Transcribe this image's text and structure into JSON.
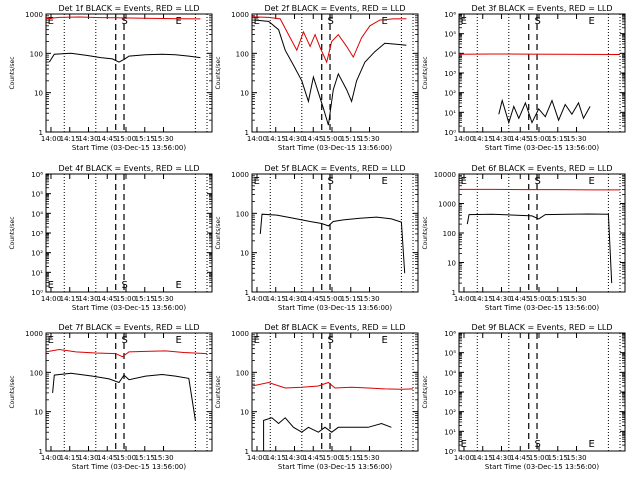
{
  "colors": {
    "events": "#000000",
    "lld": "#dd0000",
    "axes": "#000000"
  },
  "chart_data": [
    {
      "type": "line",
      "title": "Det 1f BLACK = Events, RED = LLD",
      "ylabel": "Counts/sec",
      "xlabel": "Start Time (03-Dec-15 13:56:00)",
      "yscale": "log",
      "ylim": [
        1,
        1000
      ],
      "ytick_labels": [
        "1",
        "10",
        "100",
        "1000"
      ],
      "xtick_labels": [
        "14:00",
        "14:15",
        "14:30",
        "14:45",
        "15:00",
        "15:15",
        "15:30"
      ],
      "markers": [
        "E",
        "S",
        "E"
      ],
      "series": [
        {
          "name": "Events",
          "points": [
            [
              0.02,
              60
            ],
            [
              0.05,
              95
            ],
            [
              0.15,
              100
            ],
            [
              0.25,
              88
            ],
            [
              0.33,
              78
            ],
            [
              0.4,
              72
            ],
            [
              0.44,
              60
            ],
            [
              0.47,
              70
            ],
            [
              0.5,
              85
            ],
            [
              0.6,
              92
            ],
            [
              0.7,
              95
            ],
            [
              0.78,
              92
            ],
            [
              0.86,
              85
            ],
            [
              0.93,
              78
            ]
          ]
        },
        {
          "name": "LLD",
          "points": [
            [
              0.0,
              760
            ],
            [
              0.08,
              820
            ],
            [
              0.2,
              840
            ],
            [
              0.33,
              810
            ],
            [
              0.42,
              800
            ],
            [
              0.5,
              790
            ],
            [
              0.6,
              780
            ],
            [
              0.7,
              770
            ],
            [
              0.8,
              760
            ],
            [
              0.93,
              750
            ]
          ]
        }
      ]
    },
    {
      "type": "line",
      "title": "Det 2f BLACK = Events, RED = LLD",
      "ylabel": "Counts/sec",
      "xlabel": "Start Time (03-Dec-15 13:56:00)",
      "yscale": "log",
      "ylim": [
        1,
        1000
      ],
      "ytick_labels": [
        "1",
        "10",
        "100",
        "1000"
      ],
      "xtick_labels": [
        "14:00",
        "14:15",
        "14:30",
        "14:45",
        "15:00",
        "15:15",
        "15:30"
      ],
      "markers": [
        "E",
        "S",
        "E"
      ],
      "series": [
        {
          "name": "Events",
          "points": [
            [
              0.02,
              700
            ],
            [
              0.1,
              650
            ],
            [
              0.16,
              400
            ],
            [
              0.2,
              120
            ],
            [
              0.25,
              50
            ],
            [
              0.3,
              20
            ],
            [
              0.34,
              6
            ],
            [
              0.37,
              25
            ],
            [
              0.4,
              10
            ],
            [
              0.43,
              4
            ],
            [
              0.46,
              1.5
            ],
            [
              0.49,
              12
            ],
            [
              0.52,
              30
            ],
            [
              0.57,
              12
            ],
            [
              0.6,
              6
            ],
            [
              0.63,
              20
            ],
            [
              0.68,
              60
            ],
            [
              0.74,
              110
            ],
            [
              0.8,
              180
            ],
            [
              0.87,
              170
            ],
            [
              0.93,
              160
            ]
          ]
        },
        {
          "name": "LLD",
          "points": [
            [
              0.0,
              850
            ],
            [
              0.1,
              820
            ],
            [
              0.17,
              750
            ],
            [
              0.22,
              300
            ],
            [
              0.27,
              120
            ],
            [
              0.31,
              350
            ],
            [
              0.35,
              150
            ],
            [
              0.38,
              300
            ],
            [
              0.41,
              140
            ],
            [
              0.45,
              60
            ],
            [
              0.48,
              200
            ],
            [
              0.52,
              300
            ],
            [
              0.57,
              150
            ],
            [
              0.61,
              80
            ],
            [
              0.66,
              250
            ],
            [
              0.71,
              500
            ],
            [
              0.77,
              700
            ],
            [
              0.85,
              750
            ],
            [
              0.93,
              760
            ]
          ]
        }
      ]
    },
    {
      "type": "line",
      "title": "Det 3f BLACK = Events, RED = LLD",
      "ylabel": "Counts/sec",
      "xlabel": "Start Time (03-Dec-15 13:56:00)",
      "yscale": "log",
      "ylim": [
        1,
        1000000
      ],
      "ytick_labels": [
        "10⁰",
        "10¹",
        "10²",
        "10³",
        "10⁴",
        "10⁵",
        "10⁶"
      ],
      "xtick_labels": [
        "14:00",
        "14:15",
        "14:30",
        "14:45",
        "15:00",
        "15:15",
        "15:30"
      ],
      "markers": [
        "E",
        "S",
        "E"
      ],
      "series": [
        {
          "name": "Events",
          "points": [
            [
              0.24,
              8
            ],
            [
              0.26,
              40
            ],
            [
              0.3,
              3
            ],
            [
              0.33,
              20
            ],
            [
              0.36,
              5
            ],
            [
              0.4,
              30
            ],
            [
              0.44,
              3
            ],
            [
              0.48,
              15
            ],
            [
              0.52,
              6
            ],
            [
              0.56,
              40
            ],
            [
              0.6,
              4
            ],
            [
              0.64,
              25
            ],
            [
              0.68,
              8
            ],
            [
              0.72,
              30
            ],
            [
              0.75,
              5
            ],
            [
              0.79,
              20
            ]
          ]
        },
        {
          "name": "LLD",
          "points": [
            [
              0.0,
              9000
            ],
            [
              0.2,
              9200
            ],
            [
              0.4,
              9100
            ],
            [
              0.6,
              9000
            ],
            [
              0.8,
              8800
            ],
            [
              0.97,
              8700
            ]
          ]
        }
      ]
    },
    {
      "type": "line",
      "title": "Det 4f BLACK = Events, RED = LLD",
      "ylabel": "Counts/sec",
      "xlabel": "Start Time (03-Dec-15 13:56:00)",
      "yscale": "log",
      "ylim": [
        1,
        1000000
      ],
      "ytick_labels": [
        "10⁰",
        "10¹",
        "10²",
        "10³",
        "10⁴",
        "10⁵",
        "10⁶"
      ],
      "xtick_labels": [
        "14:00",
        "14:15",
        "14:30",
        "14:45",
        "15:00",
        "15:15",
        "15:30"
      ],
      "markers": [
        "E",
        "S",
        "E"
      ],
      "series": []
    },
    {
      "type": "line",
      "title": "Det 5f BLACK = Events, RED = LLD",
      "ylabel": "Counts/sec",
      "xlabel": "Start Time (03-Dec-15 13:56:00)",
      "yscale": "log",
      "ylim": [
        1,
        1000
      ],
      "ytick_labels": [
        "1",
        "10",
        "100",
        "1000"
      ],
      "xtick_labels": [
        "14:00",
        "14:15",
        "14:30",
        "14:45",
        "15:00",
        "15:15",
        "15:30"
      ],
      "markers": [
        "E",
        "S",
        "E"
      ],
      "series": [
        {
          "name": "Events",
          "points": [
            [
              0.05,
              30
            ],
            [
              0.06,
              95
            ],
            [
              0.15,
              90
            ],
            [
              0.25,
              75
            ],
            [
              0.35,
              62
            ],
            [
              0.42,
              55
            ],
            [
              0.46,
              48
            ],
            [
              0.49,
              62
            ],
            [
              0.55,
              68
            ],
            [
              0.65,
              75
            ],
            [
              0.75,
              80
            ],
            [
              0.84,
              72
            ],
            [
              0.9,
              60
            ],
            [
              0.92,
              3
            ]
          ]
        }
      ]
    },
    {
      "type": "line",
      "title": "Det 6f BLACK = Events, RED = LLD",
      "ylabel": "Counts/sec",
      "xlabel": "Start Time (03-Dec-15 13:56:00)",
      "yscale": "log",
      "ylim": [
        1,
        10000
      ],
      "ytick_labels": [
        "1",
        "10",
        "100",
        "1000",
        "10000"
      ],
      "xtick_labels": [
        "14:00",
        "14:15",
        "14:30",
        "14:45",
        "15:00",
        "15:15",
        "15:30"
      ],
      "markers": [
        "E",
        "S",
        "E"
      ],
      "series": [
        {
          "name": "Events",
          "points": [
            [
              0.05,
              200
            ],
            [
              0.06,
              420
            ],
            [
              0.2,
              430
            ],
            [
              0.35,
              400
            ],
            [
              0.44,
              380
            ],
            [
              0.48,
              300
            ],
            [
              0.52,
              420
            ],
            [
              0.65,
              430
            ],
            [
              0.78,
              440
            ],
            [
              0.9,
              430
            ],
            [
              0.92,
              2
            ]
          ]
        },
        {
          "name": "LLD",
          "points": [
            [
              0.0,
              3000
            ],
            [
              0.2,
              3000
            ],
            [
              0.4,
              2950
            ],
            [
              0.6,
              2950
            ],
            [
              0.8,
              2900
            ],
            [
              0.97,
              2900
            ]
          ]
        }
      ]
    },
    {
      "type": "line",
      "title": "Det 7f BLACK = Events, RED = LLD",
      "ylabel": "Counts/sec",
      "xlabel": "Start Time (03-Dec-15 13:56:00)",
      "yscale": "log",
      "ylim": [
        1,
        1000
      ],
      "ytick_labels": [
        "1",
        "10",
        "100",
        "1000"
      ],
      "xtick_labels": [
        "14:00",
        "14:15",
        "14:30",
        "14:45",
        "15:00",
        "15:15",
        "15:30"
      ],
      "markers": [
        "E",
        "S",
        "E"
      ],
      "series": [
        {
          "name": "Events",
          "points": [
            [
              0.04,
              30
            ],
            [
              0.05,
              85
            ],
            [
              0.15,
              95
            ],
            [
              0.28,
              80
            ],
            [
              0.38,
              68
            ],
            [
              0.44,
              55
            ],
            [
              0.47,
              85
            ],
            [
              0.5,
              65
            ],
            [
              0.6,
              80
            ],
            [
              0.7,
              88
            ],
            [
              0.78,
              80
            ],
            [
              0.86,
              70
            ],
            [
              0.9,
              6
            ]
          ]
        },
        {
          "name": "LLD",
          "points": [
            [
              0.0,
              330
            ],
            [
              0.08,
              380
            ],
            [
              0.18,
              330
            ],
            [
              0.3,
              310
            ],
            [
              0.42,
              300
            ],
            [
              0.46,
              250
            ],
            [
              0.5,
              330
            ],
            [
              0.6,
              340
            ],
            [
              0.72,
              350
            ],
            [
              0.83,
              320
            ],
            [
              0.97,
              300
            ]
          ]
        }
      ]
    },
    {
      "type": "line",
      "title": "Det 8f BLACK = Events, RED = LLD",
      "ylabel": "Counts/sec",
      "xlabel": "Start Time (03-Dec-15 13:56:00)",
      "yscale": "log",
      "ylim": [
        1,
        1000
      ],
      "ytick_labels": [
        "1",
        "10",
        "100",
        "1000"
      ],
      "xtick_labels": [
        "14:00",
        "14:15",
        "14:30",
        "14:45",
        "15:00",
        "15:15",
        "15:30"
      ],
      "markers": [
        "E",
        "S",
        "E"
      ],
      "series": [
        {
          "name": "Events",
          "points": [
            [
              0.07,
              1
            ],
            [
              0.07,
              6
            ],
            [
              0.12,
              7
            ],
            [
              0.16,
              5
            ],
            [
              0.2,
              7
            ],
            [
              0.25,
              4
            ],
            [
              0.3,
              3
            ],
            [
              0.34,
              4
            ],
            [
              0.4,
              3
            ],
            [
              0.44,
              4
            ],
            [
              0.48,
              3
            ],
            [
              0.52,
              4
            ],
            [
              0.6,
              4
            ],
            [
              0.7,
              4
            ],
            [
              0.78,
              5
            ],
            [
              0.84,
              4
            ]
          ]
        },
        {
          "name": "LLD",
          "points": [
            [
              0.0,
              45
            ],
            [
              0.1,
              55
            ],
            [
              0.2,
              40
            ],
            [
              0.3,
              42
            ],
            [
              0.4,
              45
            ],
            [
              0.46,
              55
            ],
            [
              0.5,
              40
            ],
            [
              0.6,
              42
            ],
            [
              0.7,
              40
            ],
            [
              0.8,
              38
            ],
            [
              0.9,
              37
            ],
            [
              0.97,
              38
            ]
          ]
        }
      ]
    },
    {
      "type": "line",
      "title": "Det 9f BLACK = Events, RED = LLD",
      "ylabel": "Counts/sec",
      "xlabel": "Start Time (03-Dec-15 13:56:00)",
      "yscale": "log",
      "ylim": [
        1,
        1000000
      ],
      "ytick_labels": [
        "10⁰",
        "10¹",
        "10²",
        "10³",
        "10⁴",
        "10⁵",
        "10⁶"
      ],
      "xtick_labels": [
        "14:00",
        "14:15",
        "14:30",
        "14:45",
        "15:00",
        "15:15",
        "15:30"
      ],
      "markers": [
        "E",
        "S",
        "E"
      ],
      "series": []
    }
  ]
}
